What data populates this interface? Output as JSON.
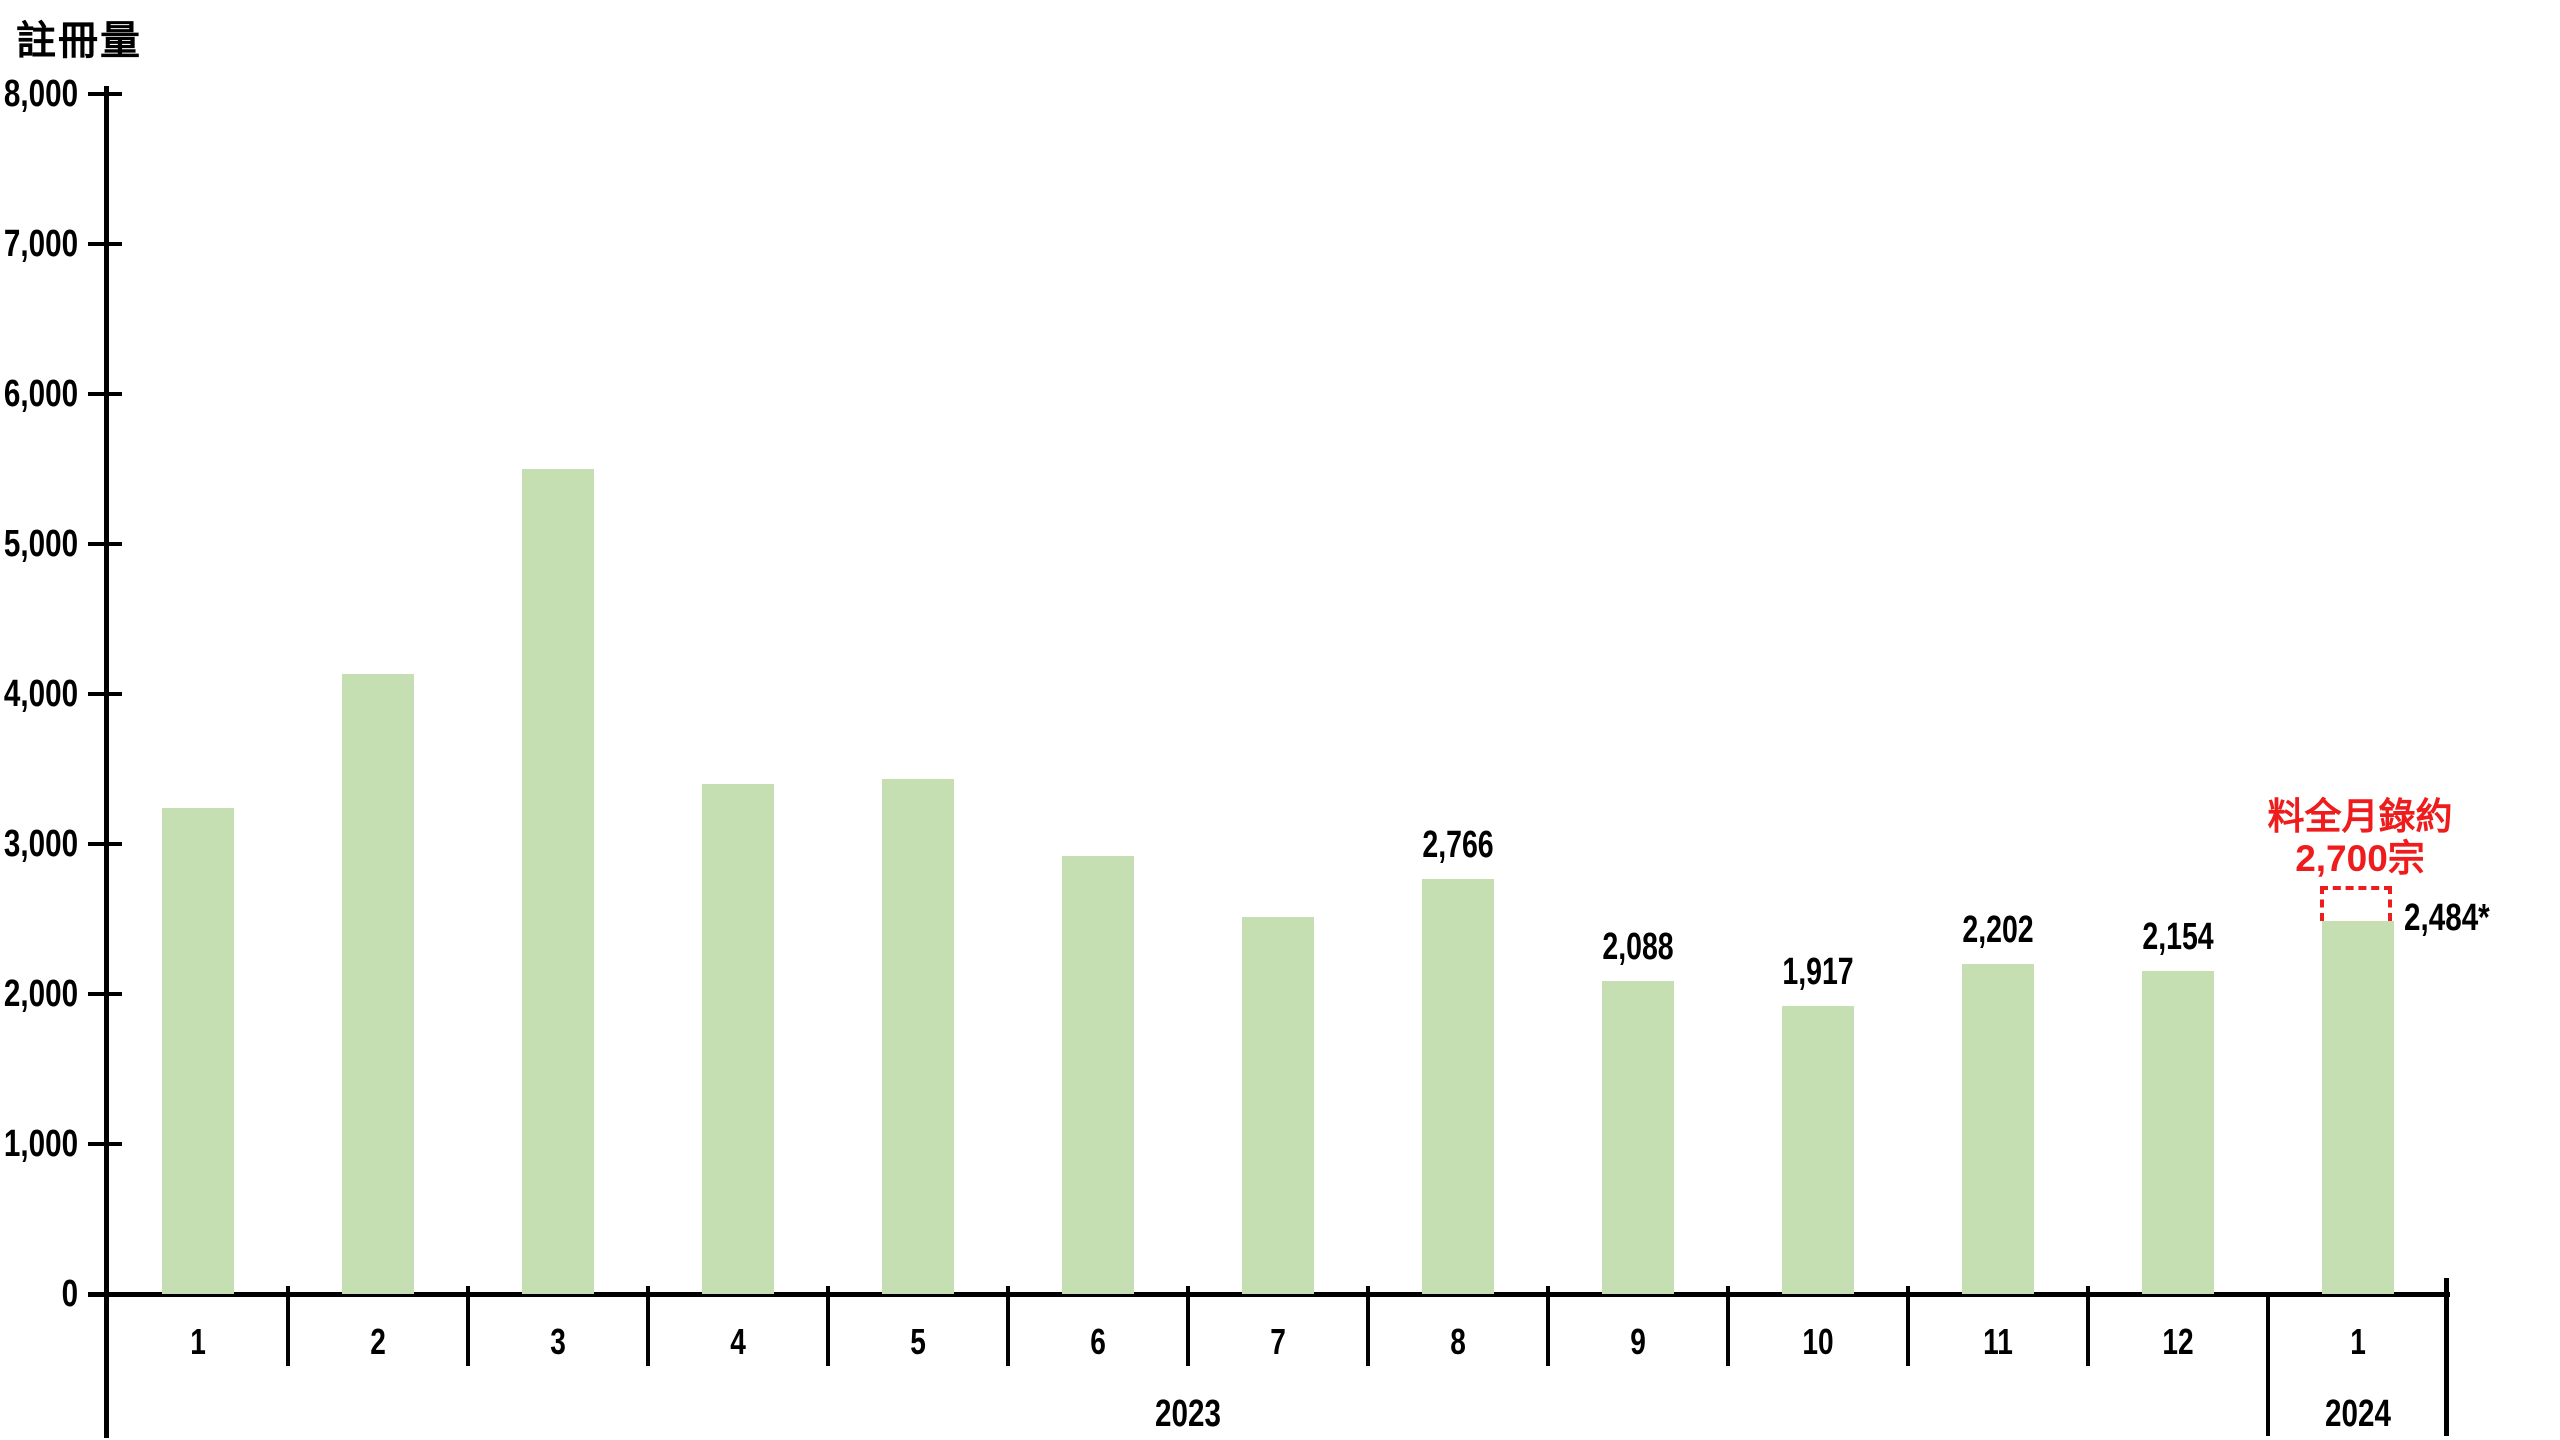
{
  "labels": {
    "axis_title": "註冊量",
    "year_2023": "2023",
    "year_2024": "2024"
  },
  "colors": {
    "bar_fill": "#c5dfb2",
    "annotation_red": "#ee1c1c",
    "axis_black": "#000000"
  },
  "annotation": {
    "line1": "料全月錄約",
    "line2": "2,700宗",
    "projected_value": 2700,
    "note_label": "2,484*"
  },
  "chart_data": {
    "type": "bar",
    "title": "註冊量",
    "ylabel": "註冊量",
    "xlabel": "",
    "ylim": [
      0,
      8000
    ],
    "ytick_step": 1000,
    "ytick_labels": [
      "0",
      "1,000",
      "2,000",
      "3,000",
      "4,000",
      "5,000",
      "6,000",
      "7,000",
      "8,000"
    ],
    "grid": false,
    "legend_position": "none",
    "series": [
      {
        "year": "2023",
        "categories": [
          "1",
          "2",
          "3",
          "4",
          "5",
          "6",
          "7",
          "8",
          "9",
          "10",
          "11",
          "12"
        ],
        "values": [
          3240,
          4130,
          5500,
          3400,
          3430,
          2920,
          2510,
          2766,
          2088,
          1917,
          2202,
          2154
        ],
        "value_labels": [
          null,
          null,
          null,
          null,
          null,
          null,
          null,
          "2,766",
          "2,088",
          "1,917",
          "2,202",
          "2,154"
        ]
      },
      {
        "year": "2024",
        "categories": [
          "1"
        ],
        "values": [
          2484
        ],
        "value_labels": [
          "2,484*"
        ]
      }
    ],
    "projected_annotation": {
      "text_line1": "料全月錄約",
      "text_line2": "2,700宗",
      "value": 2700,
      "applies_to": "2024-1"
    }
  }
}
